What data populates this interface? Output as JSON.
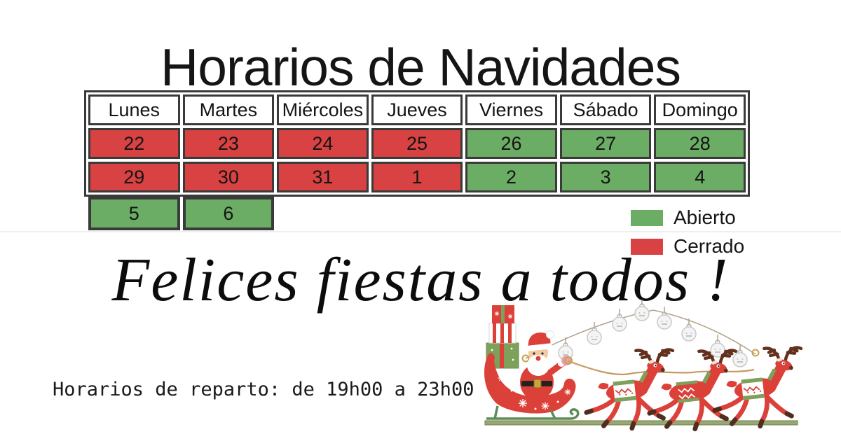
{
  "title": "Horarios de Navidades",
  "calendar": {
    "headers": [
      "Lunes",
      "Martes",
      "Miércoles",
      "Jueves",
      "Viernes",
      "Sábado",
      "Domingo"
    ],
    "rows": [
      {
        "cells": [
          {
            "label": "22",
            "status": "closed"
          },
          {
            "label": "23",
            "status": "closed"
          },
          {
            "label": "24",
            "status": "closed"
          },
          {
            "label": "25",
            "status": "closed"
          },
          {
            "label": "26",
            "status": "open"
          },
          {
            "label": "27",
            "status": "open"
          },
          {
            "label": "28",
            "status": "open"
          }
        ]
      },
      {
        "cells": [
          {
            "label": "29",
            "status": "closed"
          },
          {
            "label": "30",
            "status": "closed"
          },
          {
            "label": "31",
            "status": "closed"
          },
          {
            "label": "1",
            "status": "closed"
          },
          {
            "label": "2",
            "status": "open"
          },
          {
            "label": "3",
            "status": "open"
          },
          {
            "label": "4",
            "status": "open"
          }
        ]
      },
      {
        "cells": [
          {
            "label": "5",
            "status": "open"
          },
          {
            "label": "6",
            "status": "open"
          }
        ]
      }
    ],
    "colors": {
      "open": "#6bad64",
      "closed": "#d94242",
      "border": "#3a3a3a"
    }
  },
  "legend": {
    "items": [
      {
        "label": "Abierto",
        "color": "#6bad64"
      },
      {
        "label": "Cerrado",
        "color": "#d94242"
      }
    ]
  },
  "greeting": "Felices fiestas a todos !",
  "delivery_hours": "Horarios de reparto: de 19h00 a 23h00",
  "illustration": "santa-sleigh-with-reindeer-and-jingle-bells"
}
